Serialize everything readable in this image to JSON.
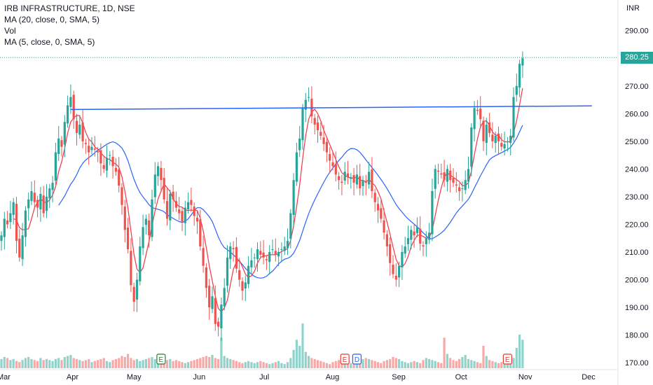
{
  "legend": {
    "title": "IRB INFRASTRUCTURE, 1D, NSE",
    "ma20": "MA (20, close, 0, SMA, 5)",
    "vol": "Vol",
    "ma5": "MA (5, close, 0, SMA, 5)"
  },
  "currency": "INR",
  "last_price_label": "280.25",
  "colors": {
    "up": "#26a69a",
    "down": "#ef5350",
    "vol_up": "#8fd3cb",
    "vol_down": "#f7a9a7",
    "ma20": "#2962ff",
    "ma5": "#f23645",
    "trendline": "#2962ff",
    "event_e": "#2e7d32",
    "event_d": "#2962ff",
    "event_e_red": "#e53935"
  },
  "chart_data": {
    "type": "candlestick",
    "y_ticks": [
      170,
      180,
      190,
      200,
      210,
      220,
      230,
      240,
      250,
      260,
      270,
      280,
      290
    ],
    "y_tick_labels": [
      "170.00",
      "180.00",
      "190.00",
      "200.00",
      "210.00",
      "220.00",
      "230.00",
      "240.00",
      "250.00",
      "260.00",
      "270.00",
      "280.00",
      "290.00"
    ],
    "ylim": [
      168,
      296
    ],
    "month_labels": [
      "Mar",
      "Apr",
      "May",
      "Jun",
      "Jul",
      "Aug",
      "Sep",
      "Oct",
      "Nov",
      "Dec"
    ],
    "month_index": [
      0,
      23,
      43,
      65,
      87,
      109,
      131,
      152,
      173,
      194
    ],
    "last_price": 280.25,
    "trendline": {
      "start_index": 23,
      "start_value": 261.5,
      "end_index": 196,
      "end_value": 262.8
    },
    "close": [
      216,
      222,
      220,
      224,
      228,
      214,
      208,
      216,
      225,
      229,
      232,
      228,
      226,
      231,
      224,
      230,
      233,
      235,
      246,
      251,
      248,
      257,
      263,
      266,
      258,
      253,
      256,
      250,
      249,
      246,
      248,
      247,
      246,
      242,
      240,
      244,
      245,
      241,
      239,
      234,
      227,
      218,
      211,
      198,
      192,
      200,
      212,
      219,
      222,
      216,
      229,
      238,
      241,
      236,
      229,
      222,
      231,
      229,
      226,
      224,
      221,
      226,
      228,
      227,
      223,
      221,
      212,
      205,
      197,
      190,
      194,
      184,
      183,
      191,
      197,
      208,
      212,
      211,
      204,
      200,
      196,
      199,
      205,
      207,
      208,
      211,
      209,
      208,
      207,
      210,
      211,
      209,
      210,
      211,
      212,
      214,
      224,
      236,
      246,
      251,
      262,
      265,
      266,
      259,
      256,
      254,
      252,
      249,
      246,
      243,
      241,
      238,
      236,
      235,
      239,
      237,
      237,
      235,
      238,
      233,
      236,
      235,
      239,
      232,
      228,
      225,
      222,
      217,
      212,
      206,
      202,
      200,
      205,
      210,
      212,
      215,
      218,
      216,
      219,
      213,
      212,
      215,
      217,
      232,
      240,
      239,
      238,
      236,
      240,
      236,
      235,
      234,
      232,
      233,
      236,
      240,
      255,
      262,
      261,
      258,
      250,
      256,
      253,
      250,
      252,
      250,
      248,
      249,
      250,
      252,
      266,
      270,
      278,
      280
    ],
    "volumes": [
      9,
      11,
      10,
      8,
      9,
      7,
      6,
      8,
      10,
      11,
      9,
      8,
      7,
      10,
      8,
      9,
      8,
      7,
      9,
      10,
      8,
      11,
      12,
      13,
      10,
      9,
      8,
      7,
      8,
      9,
      6,
      7,
      8,
      9,
      10,
      7,
      6,
      8,
      9,
      10,
      12,
      11,
      14,
      10,
      8,
      9,
      7,
      8,
      9,
      10,
      11,
      9,
      8,
      7,
      6,
      8,
      9,
      7,
      8,
      7,
      6,
      5,
      6,
      7,
      8,
      9,
      10,
      11,
      12,
      11,
      13,
      10,
      9,
      30,
      12,
      10,
      9,
      8,
      7,
      6,
      5,
      6,
      7,
      6,
      5,
      6,
      7,
      6,
      5,
      4,
      5,
      6,
      7,
      5,
      4,
      6,
      10,
      18,
      28,
      22,
      44,
      16,
      12,
      10,
      9,
      8,
      7,
      6,
      5,
      4,
      6,
      7,
      8,
      9,
      7,
      6,
      5,
      6,
      7,
      8,
      9,
      10,
      9,
      8,
      7,
      6,
      5,
      7,
      8,
      9,
      11,
      10,
      9,
      7,
      6,
      5,
      6,
      7,
      6,
      5,
      8,
      10,
      9,
      8,
      7,
      6,
      5,
      30,
      14,
      10,
      8,
      7,
      9,
      11,
      13,
      9,
      8,
      7,
      6,
      5,
      22,
      12,
      8,
      7,
      6,
      5,
      6,
      7,
      8,
      9,
      10,
      20,
      33,
      28
    ],
    "volume_ylim": [
      0,
      110
    ]
  }
}
